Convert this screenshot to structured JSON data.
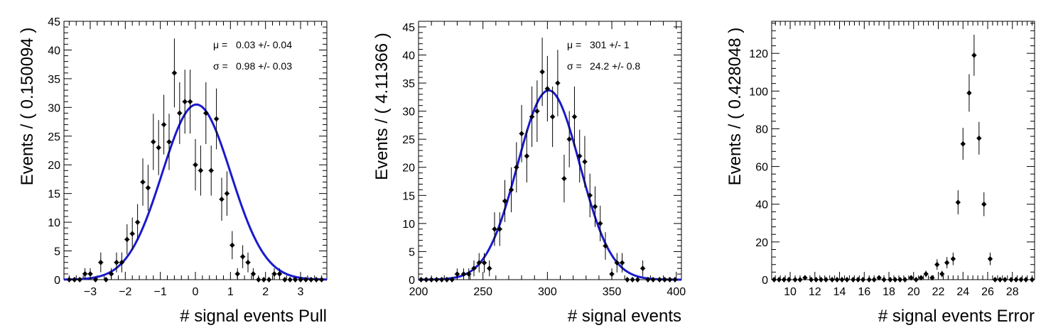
{
  "chart_data": [
    {
      "type": "scatter",
      "xlabel": "# signal events Pull",
      "ylabel": "Events / ( 0.150094 )",
      "xlim": [
        -3.75,
        3.75
      ],
      "ylim": [
        0,
        45
      ],
      "xticks": [
        -3,
        -2,
        -1,
        0,
        1,
        2,
        3
      ],
      "yticks": [
        0,
        5,
        10,
        15,
        20,
        25,
        30,
        35,
        40,
        45
      ],
      "stats": [
        {
          "label": "μ =",
          "value": "0.03 +/- 0.04"
        },
        {
          "label": "σ =",
          "value": "0.98 +/- 0.03"
        }
      ],
      "fit": {
        "type": "gaussian",
        "norm": 30.5,
        "mean": 0.03,
        "sigma": 0.98,
        "color": "#1a1acc"
      },
      "points": {
        "x": [
          -3.6,
          -3.45,
          -3.3,
          -3.15,
          -3.0,
          -2.85,
          -2.7,
          -2.55,
          -2.4,
          -2.25,
          -2.1,
          -1.95,
          -1.8,
          -1.65,
          -1.5,
          -1.35,
          -1.2,
          -1.05,
          -0.9,
          -0.75,
          -0.6,
          -0.45,
          -0.3,
          -0.15,
          0.0,
          0.15,
          0.3,
          0.45,
          0.6,
          0.75,
          0.9,
          1.05,
          1.2,
          1.35,
          1.5,
          1.65,
          1.8,
          1.95,
          2.1,
          2.25,
          2.4,
          2.55,
          2.7,
          2.85,
          3.0,
          3.15,
          3.3,
          3.45,
          3.6
        ],
        "y": [
          0,
          0,
          0,
          1,
          1,
          0,
          3,
          0,
          1,
          3,
          3,
          7,
          8,
          10,
          17,
          16,
          24,
          23,
          27,
          24,
          36,
          29,
          31,
          31,
          20,
          19,
          29,
          19,
          28,
          14,
          15,
          6,
          1,
          4,
          3,
          1,
          0,
          0,
          0,
          1,
          1,
          0,
          0,
          0,
          0,
          0,
          0,
          0,
          0
        ]
      }
    },
    {
      "type": "scatter",
      "xlabel": "# signal events",
      "ylabel": "Events / ( 4.11366 )",
      "xlim": [
        200,
        404
      ],
      "ylim": [
        0,
        46
      ],
      "xticks": [
        200,
        250,
        300,
        350,
        400
      ],
      "yticks": [
        0,
        5,
        10,
        15,
        20,
        25,
        30,
        35,
        40,
        45
      ],
      "stats": [
        {
          "label": "μ =",
          "value": "301 +/- 1"
        },
        {
          "label": "σ =",
          "value": "24.2 +/- 0.8"
        }
      ],
      "fit": {
        "type": "gaussian",
        "norm": 33.7,
        "mean": 301,
        "sigma": 24.2,
        "color": "#1a1acc"
      },
      "points": {
        "x": [
          202,
          206,
          210,
          214,
          218,
          222,
          226,
          230,
          235,
          239,
          243,
          247,
          251,
          255,
          259,
          263,
          267,
          272,
          276,
          280,
          284,
          288,
          292,
          296,
          300,
          304,
          308,
          313,
          317,
          321,
          325,
          329,
          333,
          337,
          341,
          345,
          350,
          354,
          358,
          362,
          366,
          370,
          374,
          378,
          382,
          387,
          391,
          395,
          399
        ],
        "y": [
          0,
          0,
          0,
          0,
          0,
          0,
          0,
          1,
          1,
          1,
          2,
          3,
          3,
          2,
          9,
          9,
          14,
          16,
          20,
          26,
          22,
          29,
          30,
          37,
          34,
          29,
          35,
          18,
          25,
          29,
          22,
          21,
          15,
          13,
          10,
          6,
          1,
          3,
          3,
          0,
          0,
          0,
          2,
          0,
          0,
          0,
          0,
          0,
          0
        ]
      }
    },
    {
      "type": "scatter",
      "xlabel": "# signal events Error",
      "ylabel": "Events / ( 0.428048 )",
      "xlim": [
        8.5,
        29.8
      ],
      "ylim": [
        0,
        137
      ],
      "xticks": [
        10,
        12,
        14,
        16,
        18,
        20,
        22,
        24,
        26,
        28
      ],
      "yticks": [
        0,
        20,
        40,
        60,
        80,
        100,
        120
      ],
      "stats": [],
      "fit": null,
      "points": {
        "x": [
          8.7,
          9.1,
          9.5,
          9.9,
          10.4,
          10.8,
          11.2,
          11.7,
          12.1,
          12.5,
          12.9,
          13.4,
          13.8,
          14.2,
          14.6,
          15.1,
          15.5,
          15.9,
          16.4,
          16.8,
          17.2,
          17.6,
          18.1,
          18.5,
          18.9,
          19.3,
          19.8,
          20.2,
          20.6,
          21.0,
          21.5,
          21.9,
          22.3,
          22.7,
          23.2,
          23.6,
          24.0,
          24.5,
          24.9,
          25.3,
          25.7,
          26.2,
          26.6,
          27.0,
          27.4,
          27.9,
          28.3,
          28.7,
          29.1,
          29.6
        ],
        "y": [
          0,
          0,
          0,
          0,
          0,
          0,
          1,
          0,
          0,
          0,
          0,
          0,
          0,
          0,
          0,
          0,
          0,
          0,
          0,
          0,
          1,
          0,
          0,
          0,
          0,
          0,
          1,
          0,
          1,
          3,
          1,
          8,
          3,
          9,
          11,
          41,
          72,
          99,
          119,
          75,
          40,
          11,
          0,
          0,
          0,
          0,
          0,
          0,
          0,
          0
        ]
      }
    }
  ]
}
